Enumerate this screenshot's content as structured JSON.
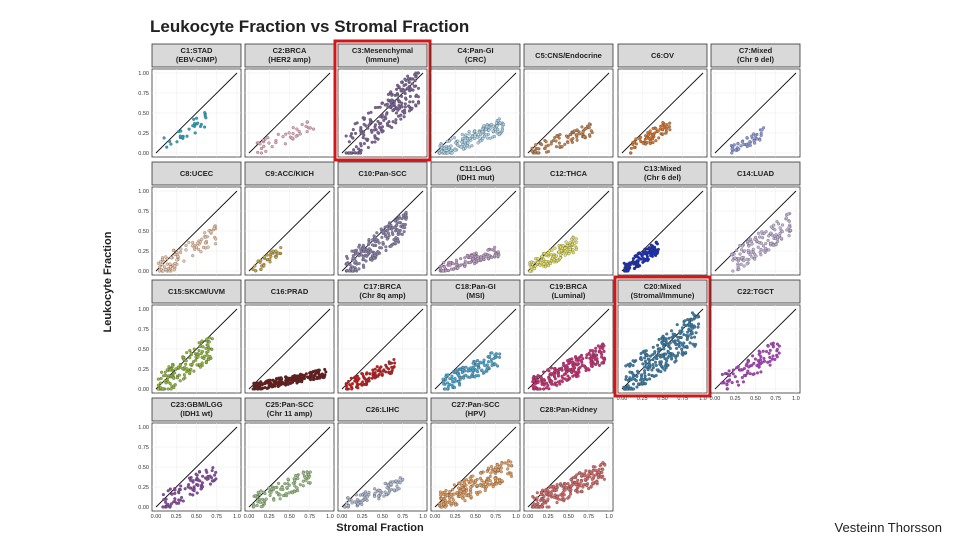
{
  "chart_data": {
    "type": "scatter",
    "title": "Leukocyte Fraction vs Stromal Fraction",
    "xlabel": "Stromal Fraction",
    "ylabel": "Leukocyte Fraction",
    "xlim": [
      0,
      1
    ],
    "ylim": [
      0,
      1
    ],
    "x_ticks": [
      "0.00",
      "0.25",
      "0.50",
      "0.75",
      "1.0"
    ],
    "y_ticks": [
      "0.00",
      "0.25",
      "0.50",
      "0.75",
      "1.00"
    ],
    "grid": true,
    "reference_line": "y = x",
    "panels": [
      {
        "title": [
          "C1:STAD",
          "(EBV-CIMP)"
        ],
        "color": "#2aa6c4",
        "n": 30,
        "x_range": [
          0.1,
          0.65
        ],
        "y_range": [
          0.1,
          0.45
        ],
        "y_ticks_shown": true,
        "x_ticks_shown": false
      },
      {
        "title": [
          "C2:BRCA",
          "(HER2 amp)"
        ],
        "color": "#e7a8b8",
        "n": 40,
        "x_range": [
          0.1,
          0.8
        ],
        "y_range": [
          0.05,
          0.35
        ],
        "y_ticks_shown": false,
        "x_ticks_shown": false
      },
      {
        "title": [
          "C3:Mesenchymal",
          "(Immune)"
        ],
        "color": "#7d6499",
        "n": 220,
        "x_range": [
          0.05,
          0.95
        ],
        "y_range": [
          0.05,
          0.85
        ],
        "y_ticks_shown": false,
        "x_ticks_shown": false,
        "highlighted": true
      },
      {
        "title": [
          "C4:Pan-GI",
          "(CRC)"
        ],
        "color": "#a9d5ec",
        "n": 180,
        "x_range": [
          0.05,
          0.85
        ],
        "y_range": [
          0.02,
          0.35
        ],
        "y_ticks_shown": false,
        "x_ticks_shown": false
      },
      {
        "title": [
          "C5:CNS/Endocrine"
        ],
        "color": "#c7844d",
        "n": 90,
        "x_range": [
          0.05,
          0.8
        ],
        "y_range": [
          0.02,
          0.3
        ],
        "y_ticks_shown": false,
        "x_ticks_shown": false
      },
      {
        "title": [
          "C6:OV"
        ],
        "color": "#d9772e",
        "n": 70,
        "x_range": [
          0.1,
          0.6
        ],
        "y_range": [
          0.05,
          0.35
        ],
        "y_ticks_shown": false,
        "x_ticks_shown": false
      },
      {
        "title": [
          "C7:Mixed",
          "(Chr 9 del)"
        ],
        "color": "#8e9ae0",
        "n": 45,
        "x_range": [
          0.2,
          0.6
        ],
        "y_range": [
          0.03,
          0.25
        ],
        "y_ticks_shown": false,
        "x_ticks_shown": false
      },
      {
        "title": [
          "C8:UCEC"
        ],
        "color": "#f2c6a4",
        "n": 90,
        "x_range": [
          0.02,
          0.75
        ],
        "y_range": [
          0.02,
          0.45
        ],
        "y_ticks_shown": true,
        "x_ticks_shown": false
      },
      {
        "title": [
          "C9:ACC/KICH"
        ],
        "color": "#c8a640",
        "n": 35,
        "x_range": [
          0.05,
          0.4
        ],
        "y_range": [
          0.02,
          0.25
        ],
        "y_ticks_shown": false,
        "x_ticks_shown": false
      },
      {
        "title": [
          "C10:Pan-SCC"
        ],
        "color": "#8b82ab",
        "n": 200,
        "x_range": [
          0.05,
          0.8
        ],
        "y_range": [
          0.05,
          0.6
        ],
        "y_ticks_shown": false,
        "x_ticks_shown": false
      },
      {
        "title": [
          "C11:LGG",
          "(IDH1 mut)"
        ],
        "color": "#bf9dc7",
        "n": 120,
        "x_range": [
          0.05,
          0.8
        ],
        "y_range": [
          0.02,
          0.25
        ],
        "y_ticks_shown": false,
        "x_ticks_shown": false
      },
      {
        "title": [
          "C12:THCA"
        ],
        "color": "#e5e262",
        "n": 130,
        "x_range": [
          0.02,
          0.6
        ],
        "y_range": [
          0.02,
          0.35
        ],
        "y_ticks_shown": false,
        "x_ticks_shown": false
      },
      {
        "title": [
          "C13:Mixed",
          "(Chr 6 del)"
        ],
        "color": "#1a2fbf",
        "n": 110,
        "x_range": [
          0.02,
          0.45
        ],
        "y_range": [
          0.02,
          0.3
        ],
        "y_ticks_shown": false,
        "x_ticks_shown": false
      },
      {
        "title": [
          "C14:LUAD"
        ],
        "color": "#c3b3d9",
        "n": 140,
        "x_range": [
          0.2,
          0.95
        ],
        "y_range": [
          0.1,
          0.6
        ],
        "y_ticks_shown": false,
        "x_ticks_shown": false
      },
      {
        "title": [
          "C15:SKCM/UVM"
        ],
        "color": "#92b83b",
        "n": 150,
        "x_range": [
          0.02,
          0.7
        ],
        "y_range": [
          0.02,
          0.55
        ],
        "y_ticks_shown": true,
        "x_ticks_shown": false
      },
      {
        "title": [
          "C16:PRAD"
        ],
        "color": "#6e1a1a",
        "n": 220,
        "x_range": [
          0.05,
          0.95
        ],
        "y_range": [
          0.02,
          0.2
        ],
        "y_ticks_shown": false,
        "x_ticks_shown": false
      },
      {
        "title": [
          "C17:BRCA",
          "(Chr 8q amp)"
        ],
        "color": "#c81c1c",
        "n": 90,
        "x_range": [
          0.05,
          0.65
        ],
        "y_range": [
          0.02,
          0.3
        ],
        "y_ticks_shown": false,
        "x_ticks_shown": false
      },
      {
        "title": [
          "C18:Pan-GI",
          "(MSI)"
        ],
        "color": "#4aa9d4",
        "n": 130,
        "x_range": [
          0.1,
          0.8
        ],
        "y_range": [
          0.05,
          0.4
        ],
        "y_ticks_shown": false,
        "x_ticks_shown": false
      },
      {
        "title": [
          "C19:BRCA",
          "(Luminal)"
        ],
        "color": "#d02f77",
        "n": 230,
        "x_range": [
          0.05,
          0.95
        ],
        "y_range": [
          0.02,
          0.45
        ],
        "y_ticks_shown": false,
        "x_ticks_shown": false
      },
      {
        "title": [
          "C20:Mixed",
          "(Stromal/Immune)"
        ],
        "color": "#3b80ab",
        "n": 280,
        "x_range": [
          0.02,
          0.95
        ],
        "y_range": [
          0.05,
          0.8
        ],
        "y_ticks_shown": false,
        "x_ticks_shown": true,
        "highlighted": true
      },
      {
        "title": [
          "C22:TGCT"
        ],
        "color": "#b140c8",
        "n": 90,
        "x_range": [
          0.05,
          0.8
        ],
        "y_range": [
          0.02,
          0.5
        ],
        "y_ticks_shown": false,
        "x_ticks_shown": true
      },
      {
        "title": [
          "C23:GBM/LGG",
          "(IDH1 wt)"
        ],
        "color": "#8a4ba3",
        "n": 90,
        "x_range": [
          0.05,
          0.75
        ],
        "y_range": [
          0.02,
          0.45
        ],
        "y_ticks_shown": true,
        "x_ticks_shown": true
      },
      {
        "title": [
          "C25:Pan-SCC",
          "(Chr 11 amp)"
        ],
        "color": "#9bc284",
        "n": 100,
        "x_range": [
          0.05,
          0.8
        ],
        "y_range": [
          0.05,
          0.4
        ],
        "y_ticks_shown": false,
        "x_ticks_shown": true
      },
      {
        "title": [
          "C26:LIHC"
        ],
        "color": "#aeb8d3",
        "n": 90,
        "x_range": [
          0.02,
          0.75
        ],
        "y_range": [
          0.02,
          0.3
        ],
        "y_ticks_shown": false,
        "x_ticks_shown": true
      },
      {
        "title": [
          "C27:Pan-SCC",
          "(HPV)"
        ],
        "color": "#e8a060",
        "n": 220,
        "x_range": [
          0.05,
          0.95
        ],
        "y_range": [
          0.05,
          0.5
        ],
        "y_ticks_shown": false,
        "x_ticks_shown": true
      },
      {
        "title": [
          "C28:Pan-Kidney"
        ],
        "color": "#d96c6c",
        "n": 220,
        "x_range": [
          0.05,
          0.95
        ],
        "y_range": [
          0.02,
          0.45
        ],
        "y_ticks_shown": false,
        "x_ticks_shown": true
      }
    ]
  },
  "credit": "Vesteinn Thorsson"
}
